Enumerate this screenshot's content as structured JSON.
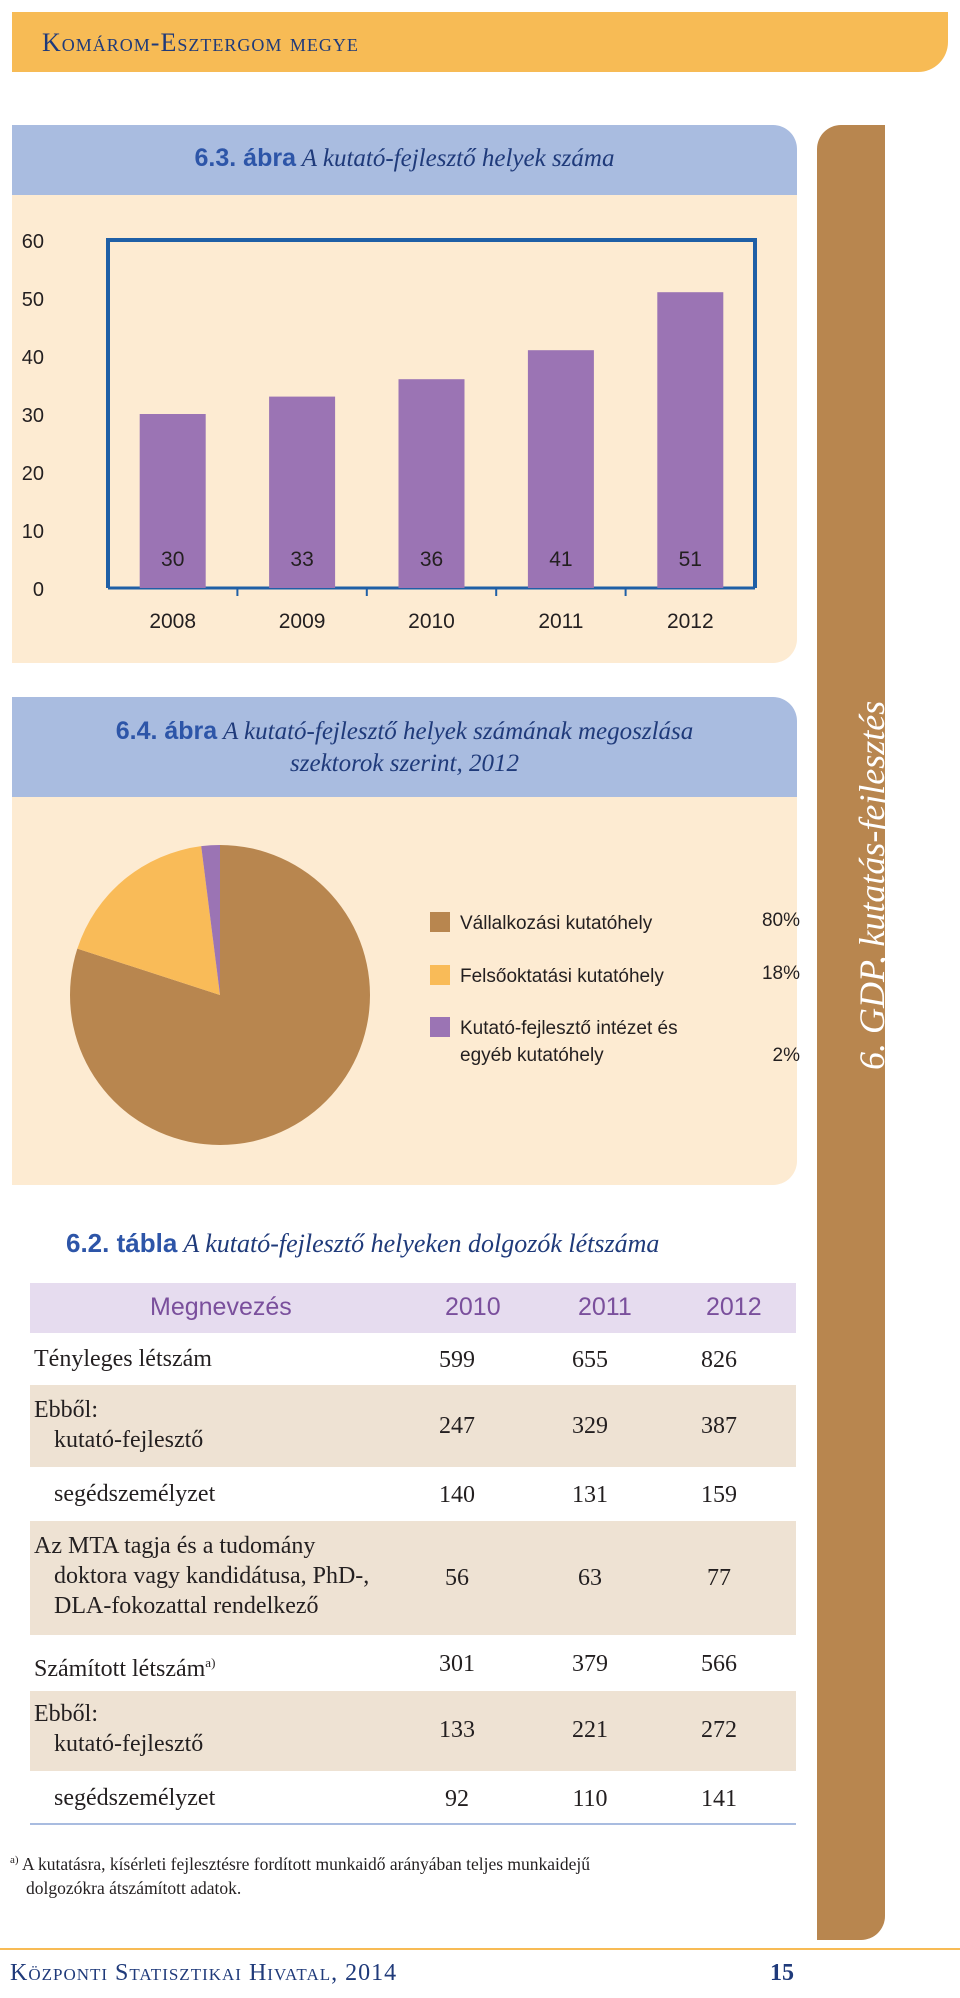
{
  "header": {
    "title": "Komárom-Esztergom megye"
  },
  "side_label": "6. GDP, kutatás-fejlesztés",
  "chart_data": [
    {
      "type": "bar",
      "title_number": "6.3. ábra",
      "title": "A kutató-fejlesztő helyek száma",
      "categories": [
        "2008",
        "2009",
        "2010",
        "2011",
        "2012"
      ],
      "values": [
        30,
        33,
        36,
        41,
        51
      ],
      "value_labels": [
        "30",
        "33",
        "36",
        "41",
        "51"
      ],
      "ylim": [
        0,
        60
      ],
      "yticks": [
        "0",
        "10",
        "20",
        "30",
        "40",
        "50",
        "60"
      ],
      "color": "#9b74b4"
    },
    {
      "type": "pie",
      "title_number": "6.4. ábra",
      "title_line1": "A kutató-fejlesztő helyek számának megoszlása",
      "title_line2": "szektorok szerint, 2012",
      "slices": [
        {
          "label": "Vállalkozási kutatóhely",
          "value": 80,
          "display": "80%",
          "color": "#b8864f"
        },
        {
          "label": "Felsőoktatási kutatóhely",
          "value": 18,
          "display": "18%",
          "color": "#f9bb58"
        },
        {
          "label_line1": "Kutató-fejlesztő intézet és",
          "label_line2": "egyéb kutatóhely",
          "value": 2,
          "display": "2%",
          "color": "#9b74b4"
        }
      ]
    }
  ],
  "table": {
    "title_number": "6.2. tábla",
    "title": "A kutató-fejlesztő helyeken dolgozók létszáma",
    "columns": [
      "Megnevezés",
      "2010",
      "2011",
      "2012"
    ],
    "rows": [
      {
        "l1": "Tényleges létszám",
        "values": [
          "599",
          "655",
          "826"
        ]
      },
      {
        "l1": "Ebből:",
        "l2": "kutató-fejlesztő",
        "values": [
          "247",
          "329",
          "387"
        ]
      },
      {
        "l1": "segédszemélyzet",
        "values": [
          "140",
          "131",
          "159"
        ]
      },
      {
        "l1": "Az MTA tagja és a tudomány",
        "l2": "doktora vagy kandidátusa, PhD-,",
        "l3": "DLA-fokozattal rendelkező",
        "values": [
          "56",
          "63",
          "77"
        ]
      },
      {
        "l1": "Számított létszám",
        "sup": "a)",
        "values": [
          "301",
          "379",
          "566"
        ]
      },
      {
        "l1": "Ebből:",
        "l2": "kutató-fejlesztő",
        "values": [
          "133",
          "221",
          "272"
        ]
      },
      {
        "l1": "segédszemélyzet",
        "values": [
          "92",
          "110",
          "141"
        ]
      }
    ]
  },
  "footnote": {
    "mark": "a)",
    "line1": "A kutatásra, kísérleti fejlesztésre fordított munkaidő arányában teljes munkaidejű",
    "line2": "dolgozókra átszámított adatok."
  },
  "footer": {
    "title": "Központi Statisztikai Hivatal, 2014",
    "page": "15"
  }
}
